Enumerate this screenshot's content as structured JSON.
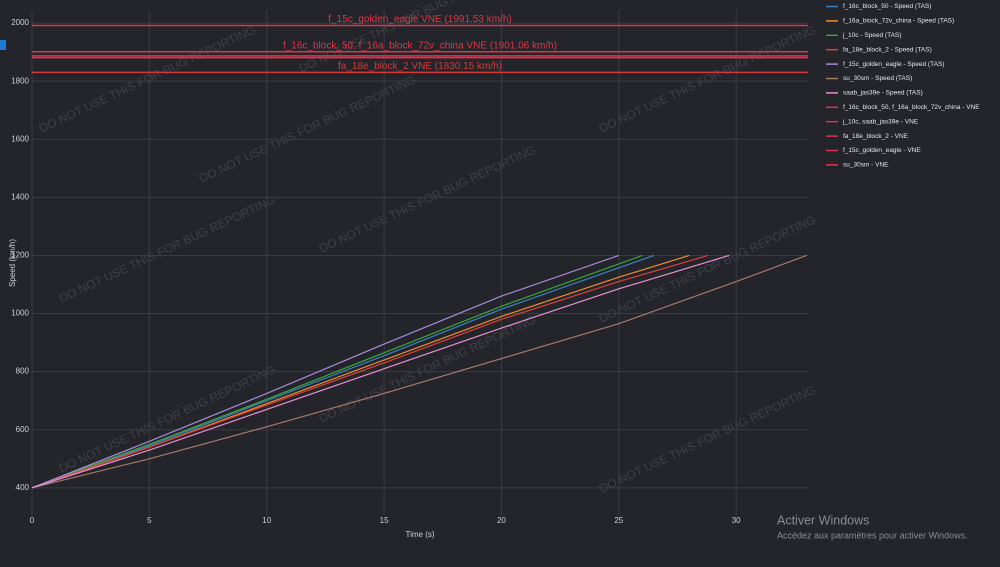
{
  "chart_data": {
    "type": "line",
    "x_label": "Time (s)",
    "y_label": "Speed (km/h)",
    "xlim": [
      0,
      33.06
    ],
    "ylim": [
      303,
      2045
    ],
    "xticks": [
      0,
      5,
      10,
      15,
      20,
      25,
      30
    ],
    "yticks": [
      400,
      600,
      800,
      1000,
      1200,
      1400,
      1600,
      1800,
      2000
    ],
    "grid": true,
    "watermark": "DO NOT USE THIS FOR BUG REPORTING",
    "series": [
      {
        "name": "f_16c_block_50 - Speed (TAS)",
        "color": "#3b82c4",
        "x": [
          0,
          5,
          10,
          15,
          20,
          26.5
        ],
        "values": [
          400,
          545,
          700,
          855,
          1015,
          1200
        ]
      },
      {
        "name": "f_16a_block_72v_china - Speed (TAS)",
        "color": "#f28c28",
        "x": [
          0,
          5,
          10,
          15,
          20,
          25,
          28
        ],
        "values": [
          400,
          540,
          690,
          840,
          990,
          1125,
          1200
        ]
      },
      {
        "name": "j_10c - Speed (TAS)",
        "color": "#3aa63a",
        "x": [
          0,
          5,
          10,
          15,
          20,
          26
        ],
        "values": [
          400,
          550,
          705,
          865,
          1025,
          1200
        ]
      },
      {
        "name": "fa_18e_block_2 - Speed (TAS)",
        "color": "#d9413f",
        "x": [
          0,
          5,
          10,
          15,
          20,
          25,
          28.8
        ],
        "values": [
          400,
          540,
          685,
          830,
          980,
          1110,
          1200
        ]
      },
      {
        "name": "f_15c_golden_eagle - Speed (TAS)",
        "color": "#a58bd6",
        "x": [
          0,
          5,
          10,
          15,
          20,
          25
        ],
        "values": [
          400,
          560,
          725,
          895,
          1060,
          1200
        ]
      },
      {
        "name": "su_30sm - Speed (TAS)",
        "color": "#a77a6a",
        "x": [
          0,
          5,
          10,
          15,
          20,
          25,
          30,
          33
        ],
        "values": [
          400,
          500,
          610,
          725,
          845,
          965,
          1110,
          1200
        ]
      },
      {
        "name": "saab_jas39e - Speed (TAS)",
        "color": "#ea8fd0",
        "x": [
          0,
          5,
          10,
          15,
          20,
          25,
          29.7
        ],
        "values": [
          400,
          530,
          670,
          810,
          950,
          1085,
          1200
        ]
      }
    ],
    "vne_lines": [
      {
        "name": "f_16c_block_50, f_16a_block_72v_china - VNE",
        "value": 1901.06,
        "label": "f_16c_block_50, f_16a_block_72v_china VNE (1901.06 km/h)",
        "color": "#dc3545"
      },
      {
        "name": "j_10c, saab_jas39e - VNE",
        "value": 1887,
        "color": "#e0314a"
      },
      {
        "name": "fa_18e_block_2 - VNE",
        "value": 1830.15,
        "label": "fa_18e_block_2 VNE (1830.15 km/h)",
        "color": "#d43a3a"
      },
      {
        "name": "f_15c_golden_eagle - VNE",
        "value": 1991.53,
        "label": "f_15c_golden_eagle VNE (1991.53 km/h)",
        "color": "#dc3545"
      },
      {
        "name": "su_30sm - VNE",
        "value": 1881,
        "color": "#e8304d"
      }
    ]
  },
  "os_notice": {
    "title": "Activer Windows",
    "subtitle": "Accédez aux paramètres pour activer Windows."
  }
}
